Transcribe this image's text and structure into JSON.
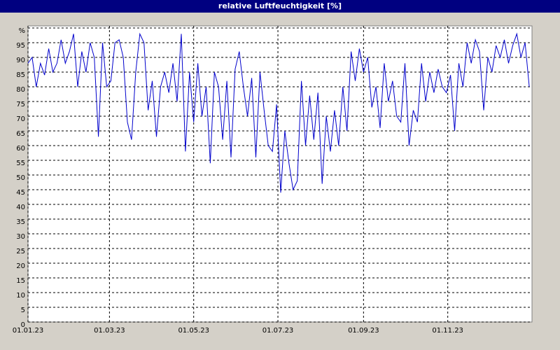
{
  "chart_data": {
    "type": "line",
    "title": "relative Luftfeuchtigkeit [%]",
    "x": [
      0,
      3,
      6,
      9,
      12,
      15,
      18,
      21,
      24,
      27,
      30,
      33,
      36,
      39,
      42,
      45,
      48,
      51,
      54,
      57,
      60,
      63,
      66,
      69,
      72,
      75,
      78,
      81,
      84,
      87,
      90,
      93,
      96,
      99,
      102,
      105,
      108,
      111,
      114,
      117,
      120,
      123,
      126,
      129,
      132,
      135,
      138,
      141,
      144,
      147,
      150,
      153,
      156,
      159,
      162,
      165,
      168,
      171,
      174,
      177,
      180,
      183,
      186,
      189,
      192,
      195,
      198,
      201,
      204,
      207,
      210,
      213,
      216,
      219,
      222,
      225,
      228,
      231,
      234,
      237,
      240,
      243,
      246,
      249,
      252,
      255,
      258,
      261,
      264,
      267,
      270,
      273,
      276,
      279,
      282,
      285,
      288,
      291,
      294,
      297,
      300,
      303,
      306,
      309,
      312,
      315,
      318,
      321,
      324,
      327,
      330,
      333,
      336,
      339,
      342,
      345,
      348,
      351,
      354,
      357,
      360,
      363
    ],
    "series": [
      {
        "color": "#0000cc",
        "values": [
          88,
          90,
          80,
          88,
          84,
          93,
          85,
          88,
          96,
          88,
          92,
          98,
          80,
          92,
          85,
          95,
          90,
          63,
          95,
          80,
          82,
          95,
          96,
          90,
          68,
          62,
          85,
          98,
          95,
          72,
          82,
          63,
          80,
          85,
          78,
          88,
          75,
          98,
          58,
          85,
          68,
          88,
          70,
          80,
          54,
          85,
          80,
          62,
          82,
          56,
          86,
          92,
          80,
          70,
          83,
          56,
          85,
          72,
          60,
          58,
          74,
          44,
          65,
          54,
          45,
          48,
          82,
          60,
          77,
          62,
          78,
          47,
          70,
          58,
          72,
          60,
          80,
          65,
          92,
          82,
          93,
          85,
          90,
          73,
          80,
          66,
          88,
          75,
          82,
          70,
          68,
          88,
          60,
          72,
          68,
          88,
          75,
          85,
          78,
          86,
          80,
          78,
          84,
          65,
          88,
          80,
          95,
          88,
          96,
          92,
          72,
          90,
          85,
          94,
          90,
          96,
          88,
          94,
          98,
          90,
          95,
          80
        ]
      }
    ],
    "xlim": [
      0,
      365
    ],
    "xticks": [
      {
        "value": 0,
        "label": "01.01.23"
      },
      {
        "value": 59,
        "label": "01.03.23"
      },
      {
        "value": 120,
        "label": "01.05.23"
      },
      {
        "value": 181,
        "label": "01.07.23"
      },
      {
        "value": 243,
        "label": "01.09.23"
      },
      {
        "value": 304,
        "label": "01.11.23"
      }
    ],
    "ylim": [
      0,
      100
    ],
    "yticks": [
      0,
      5,
      10,
      15,
      20,
      25,
      30,
      35,
      40,
      45,
      50,
      55,
      60,
      65,
      70,
      75,
      80,
      85,
      90,
      95,
      {
        "value": 100,
        "label": "%"
      }
    ],
    "grid": true
  }
}
